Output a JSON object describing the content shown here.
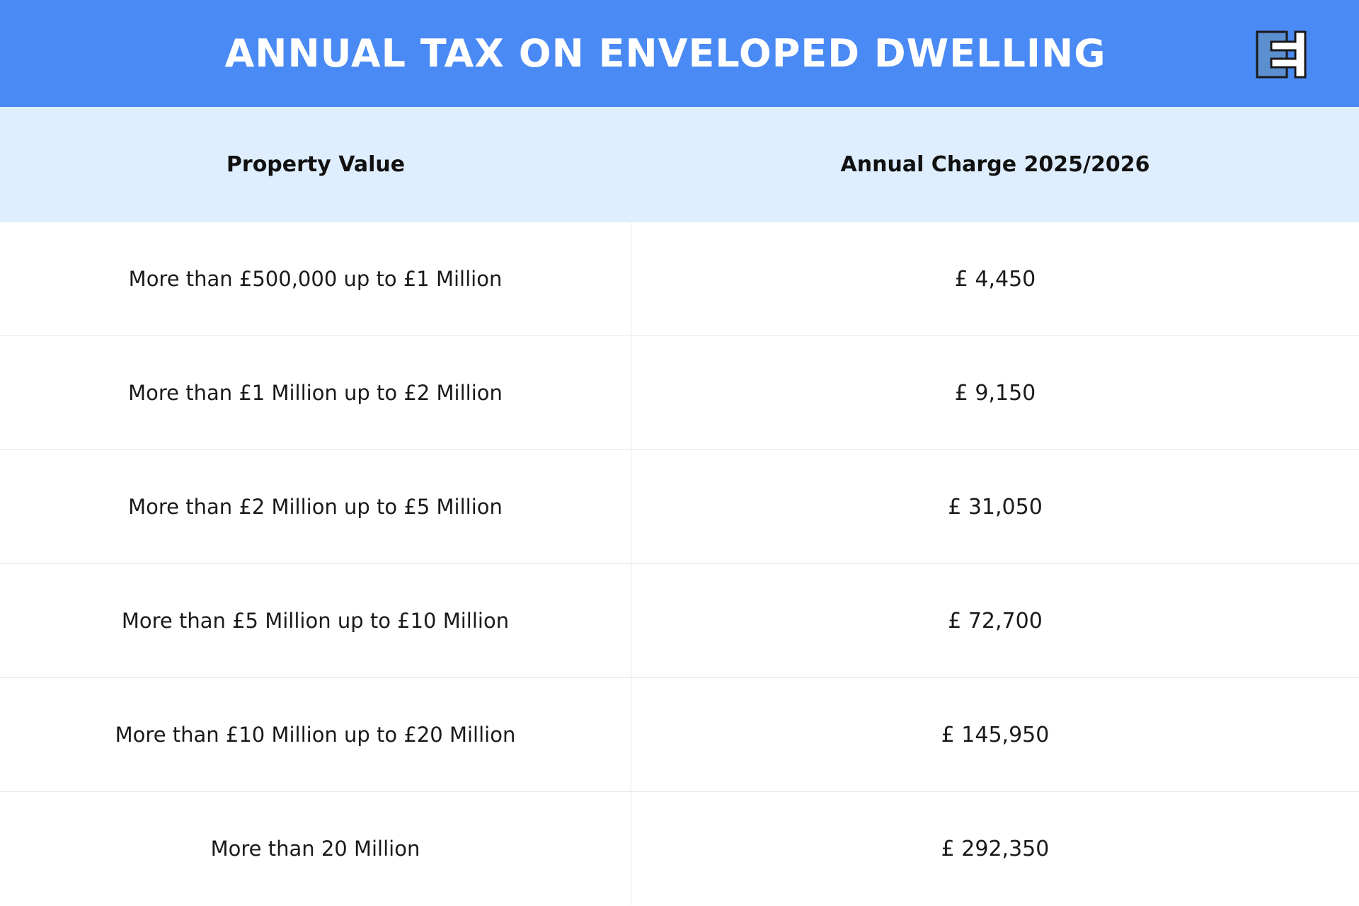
{
  "title": "ANNUAL TAX ON ENVELOPED DWELLING",
  "logo": {
    "icon": "brand-logo-icon"
  },
  "table": {
    "headers": [
      "Property Value",
      "Annual Charge 2025/2026"
    ],
    "rows": [
      {
        "property_value": "More than £500,000 up to £1 Million",
        "annual_charge": "£ 4,450"
      },
      {
        "property_value": "More than £1 Million up to £2 Million",
        "annual_charge": "£ 9,150"
      },
      {
        "property_value": "More than £2 Million up to £5 Million",
        "annual_charge": "£ 31,050"
      },
      {
        "property_value": "More than £5 Million up to £10 Million",
        "annual_charge": "£ 72,700"
      },
      {
        "property_value": "More than £10 Million up to £20 Million",
        "annual_charge": "£ 145,950"
      },
      {
        "property_value": "More than 20 Million",
        "annual_charge": "£ 292,350"
      }
    ]
  },
  "colors": {
    "title_bar": "#4a8af4",
    "header_row": "#dfeefe",
    "logo_fill": "#5b8fd0",
    "text": "#111111"
  }
}
